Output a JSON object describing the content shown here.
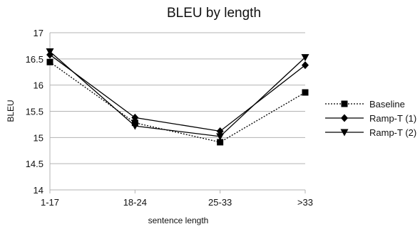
{
  "chart_data": {
    "type": "line",
    "title": "BLEU by length",
    "xlabel": "sentence length",
    "ylabel": "BLEU",
    "categories": [
      "1-17",
      "18-24",
      "25-33",
      ">33"
    ],
    "ylim": [
      14,
      17
    ],
    "yticks": [
      14,
      14.5,
      15,
      15.5,
      16,
      16.5,
      17
    ],
    "ytick_labels": [
      "14",
      "14.5",
      "15",
      "15.5",
      "16",
      "16.5",
      "17"
    ],
    "grid": true,
    "legend_position": "right",
    "series": [
      {
        "name": "Baseline",
        "values": [
          16.44,
          15.28,
          14.91,
          15.86
        ],
        "marker": "square",
        "dash": "dotted",
        "color": "#000000"
      },
      {
        "name": "Ramp-T (1)",
        "values": [
          16.58,
          15.38,
          15.12,
          16.38
        ],
        "marker": "diamond",
        "dash": "solid",
        "color": "#000000"
      },
      {
        "name": "Ramp-T (2)",
        "values": [
          16.64,
          15.22,
          15.02,
          16.53
        ],
        "marker": "triangle-down",
        "dash": "solid",
        "color": "#000000"
      }
    ]
  }
}
